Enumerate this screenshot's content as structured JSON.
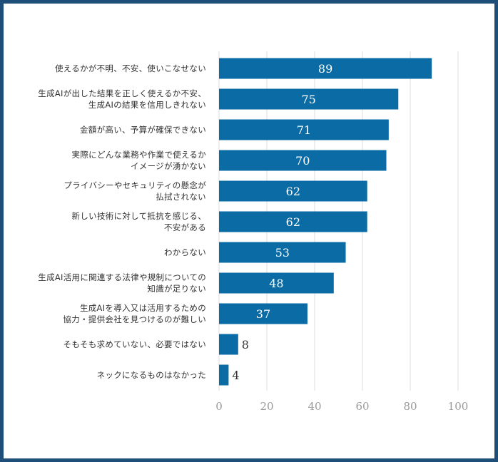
{
  "chart_data": {
    "type": "bar",
    "orientation": "horizontal",
    "categories": [
      "使えるかが不明、不安、使いこなせない",
      "生成AIが出した結果を正しく使えるか不安、\n生成AIの結果を信用しきれない",
      "金額が高い、予算が確保できない",
      "実際にどんな業務や作業で使えるか\nイメージが湧かない",
      "プライバシーやセキュリティの懸念が\n払拭されない",
      "新しい技術に対して抵抗を感じる、\n不安がある",
      "わからない",
      "生成AI活用に関連する法律や規制についての\n知識が足りない",
      "生成AIを導入又は活用するための\n協力・提供会社を見つけるのが難しい",
      "そもそも求めていない、必要ではない",
      "ネックになるものはなかった"
    ],
    "values": [
      89,
      75,
      71,
      70,
      62,
      62,
      53,
      48,
      37,
      8,
      4
    ],
    "xlim": [
      0,
      100
    ],
    "x_ticks": [
      0,
      20,
      40,
      60,
      80,
      100
    ],
    "grid": true,
    "colors": {
      "bar": "#0a6ba5",
      "frame": "#1f4e79",
      "grid": "#dddddd",
      "label_inside": "#ffffff",
      "label_outside": "#333333",
      "tick": "#999999"
    }
  }
}
